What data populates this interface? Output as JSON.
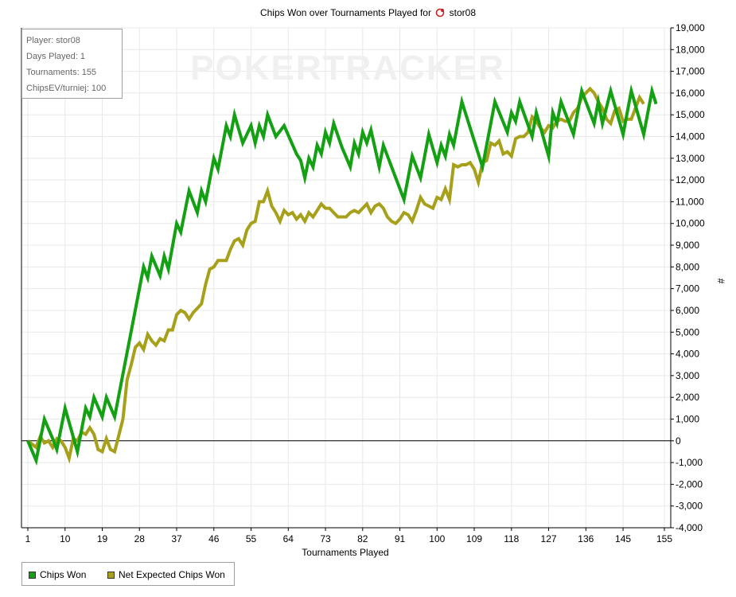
{
  "title": {
    "prefix": "Chips Won over Tournaments Played for",
    "player": "stor08",
    "icon": "player-site-icon"
  },
  "info": {
    "player": "Player: stor08",
    "days": "Days Played: 1",
    "tournaments": "Tournaments: 155",
    "chipsev": "ChipsEV/turniej: 100"
  },
  "watermark": "POKERTRACKER",
  "colors": {
    "chips_won": "#13a013",
    "net_expected": "#a6a01a",
    "grid": "#e8e8e8",
    "zero_line": "#000000"
  },
  "legend": {
    "position": "bottom-left",
    "items": [
      "Chips Won",
      "Net Expected Chips Won"
    ]
  },
  "chart_data": {
    "type": "line",
    "title": "Chips Won over Tournaments Played for stor08",
    "xlabel": "Tournaments Played",
    "ylabel": "#",
    "xlim": [
      1,
      155
    ],
    "ylim": [
      -4000,
      19000
    ],
    "grid": true,
    "x_ticks": [
      1,
      10,
      19,
      28,
      37,
      46,
      55,
      64,
      73,
      82,
      91,
      100,
      109,
      118,
      127,
      136,
      145,
      155
    ],
    "y_ticks": [
      -4000,
      -3000,
      -2000,
      -1000,
      0,
      1000,
      2000,
      3000,
      4000,
      5000,
      6000,
      7000,
      8000,
      9000,
      10000,
      11000,
      12000,
      13000,
      14000,
      15000,
      16000,
      17000,
      18000,
      19000
    ],
    "y_tick_labels": [
      "-4,000",
      "-3,000",
      "-2,000",
      "-1,000",
      "0",
      "1,000",
      "2,000",
      "3,000",
      "4,000",
      "5,000",
      "6,000",
      "7,000",
      "8,000",
      "9,000",
      "10,000",
      "11,000",
      "12,000",
      "13,000",
      "14,000",
      "15,000",
      "16,000",
      "17,000",
      "18,000",
      "19,000"
    ],
    "series": [
      {
        "name": "Chips Won",
        "points": [
          [
            1,
            0
          ],
          [
            3,
            -900
          ],
          [
            5,
            1000
          ],
          [
            7,
            100
          ],
          [
            8,
            -400
          ],
          [
            10,
            1500
          ],
          [
            13,
            -500
          ],
          [
            15,
            1500
          ],
          [
            16,
            1100
          ],
          [
            17,
            2000
          ],
          [
            19,
            1100
          ],
          [
            20,
            2000
          ],
          [
            22,
            1100
          ],
          [
            29,
            8000
          ],
          [
            30,
            7500
          ],
          [
            31,
            8500
          ],
          [
            33,
            7600
          ],
          [
            34,
            8500
          ],
          [
            35,
            7900
          ],
          [
            37,
            10000
          ],
          [
            38,
            9600
          ],
          [
            40,
            11500
          ],
          [
            42,
            10500
          ],
          [
            43,
            11500
          ],
          [
            44,
            11000
          ],
          [
            46,
            13000
          ],
          [
            47,
            12500
          ],
          [
            49,
            14500
          ],
          [
            50,
            14000
          ],
          [
            51,
            15000
          ],
          [
            53,
            13700
          ],
          [
            55,
            14500
          ],
          [
            56,
            13700
          ],
          [
            57,
            14500
          ],
          [
            58,
            14000
          ],
          [
            59,
            15000
          ],
          [
            61,
            14000
          ],
          [
            63,
            14500
          ],
          [
            66,
            13200
          ],
          [
            67,
            12900
          ],
          [
            68,
            12100
          ],
          [
            69,
            13000
          ],
          [
            70,
            12600
          ],
          [
            71,
            13600
          ],
          [
            72,
            13200
          ],
          [
            73,
            14200
          ],
          [
            74,
            13700
          ],
          [
            75,
            14600
          ],
          [
            77,
            13500
          ],
          [
            79,
            12600
          ],
          [
            80,
            13700
          ],
          [
            81,
            13200
          ],
          [
            82,
            14200
          ],
          [
            83,
            13700
          ],
          [
            84,
            14300
          ],
          [
            86,
            12600
          ],
          [
            87,
            13600
          ],
          [
            92,
            11100
          ],
          [
            94,
            13100
          ],
          [
            96,
            12100
          ],
          [
            98,
            14100
          ],
          [
            100,
            12800
          ],
          [
            101,
            13600
          ],
          [
            102,
            13100
          ],
          [
            103,
            14100
          ],
          [
            104,
            13600
          ],
          [
            106,
            15600
          ],
          [
            111,
            12600
          ],
          [
            114,
            15600
          ],
          [
            117,
            14200
          ],
          [
            118,
            15100
          ],
          [
            119,
            14700
          ],
          [
            120,
            15600
          ],
          [
            123,
            14000
          ],
          [
            124,
            15100
          ],
          [
            127,
            13100
          ],
          [
            128,
            15100
          ],
          [
            129,
            14600
          ],
          [
            130,
            15600
          ],
          [
            133,
            14100
          ],
          [
            135,
            16100
          ],
          [
            138,
            14600
          ],
          [
            139,
            15600
          ],
          [
            140,
            14600
          ],
          [
            142,
            16100
          ],
          [
            145,
            14100
          ],
          [
            147,
            16100
          ],
          [
            150,
            14100
          ],
          [
            152,
            16100
          ],
          [
            153,
            15500
          ]
        ]
      },
      {
        "name": "Net Expected Chips Won",
        "points": [
          [
            1,
            0
          ],
          [
            3,
            -300
          ],
          [
            4,
            200
          ],
          [
            5,
            -100
          ],
          [
            6,
            0
          ],
          [
            7,
            -300
          ],
          [
            8,
            100
          ],
          [
            9,
            0
          ],
          [
            10,
            -300
          ],
          [
            11,
            -800
          ],
          [
            12,
            100
          ],
          [
            13,
            0
          ],
          [
            14,
            400
          ],
          [
            15,
            300
          ],
          [
            16,
            600
          ],
          [
            17,
            300
          ],
          [
            18,
            -400
          ],
          [
            19,
            -500
          ],
          [
            20,
            100
          ],
          [
            21,
            -400
          ],
          [
            22,
            -500
          ],
          [
            24,
            1000
          ],
          [
            25,
            2800
          ],
          [
            26,
            3500
          ],
          [
            27,
            4300
          ],
          [
            28,
            4500
          ],
          [
            29,
            4200
          ],
          [
            30,
            4900
          ],
          [
            31,
            4600
          ],
          [
            32,
            4400
          ],
          [
            33,
            4700
          ],
          [
            34,
            4600
          ],
          [
            35,
            5100
          ],
          [
            36,
            5100
          ],
          [
            37,
            5800
          ],
          [
            38,
            6000
          ],
          [
            39,
            5900
          ],
          [
            40,
            5600
          ],
          [
            41,
            5900
          ],
          [
            43,
            6300
          ],
          [
            44,
            7200
          ],
          [
            45,
            7900
          ],
          [
            46,
            8000
          ],
          [
            47,
            8300
          ],
          [
            49,
            8300
          ],
          [
            50,
            8800
          ],
          [
            51,
            9200
          ],
          [
            52,
            9300
          ],
          [
            53,
            9000
          ],
          [
            54,
            9700
          ],
          [
            55,
            10000
          ],
          [
            56,
            10100
          ],
          [
            57,
            11000
          ],
          [
            58,
            11000
          ],
          [
            59,
            11500
          ],
          [
            60,
            10800
          ],
          [
            61,
            10500
          ],
          [
            62,
            10100
          ],
          [
            63,
            10600
          ],
          [
            64,
            10400
          ],
          [
            65,
            10500
          ],
          [
            66,
            10200
          ],
          [
            67,
            10400
          ],
          [
            68,
            10100
          ],
          [
            69,
            10500
          ],
          [
            70,
            10300
          ],
          [
            71,
            10600
          ],
          [
            72,
            10900
          ],
          [
            73,
            10700
          ],
          [
            74,
            10700
          ],
          [
            75,
            10500
          ],
          [
            76,
            10300
          ],
          [
            78,
            10300
          ],
          [
            79,
            10500
          ],
          [
            80,
            10600
          ],
          [
            81,
            10500
          ],
          [
            82,
            10700
          ],
          [
            83,
            10900
          ],
          [
            84,
            10500
          ],
          [
            85,
            10800
          ],
          [
            86,
            10900
          ],
          [
            87,
            10700
          ],
          [
            88,
            10300
          ],
          [
            89,
            10100
          ],
          [
            90,
            10000
          ],
          [
            91,
            10200
          ],
          [
            92,
            10500
          ],
          [
            93,
            10400
          ],
          [
            94,
            10100
          ],
          [
            95,
            10600
          ],
          [
            96,
            11200
          ],
          [
            97,
            10900
          ],
          [
            98,
            10800
          ],
          [
            99,
            10700
          ],
          [
            100,
            11200
          ],
          [
            101,
            11100
          ],
          [
            102,
            11600
          ],
          [
            103,
            11100
          ],
          [
            104,
            12700
          ],
          [
            105,
            12600
          ],
          [
            106,
            12700
          ],
          [
            107,
            12700
          ],
          [
            108,
            12800
          ],
          [
            109,
            12500
          ],
          [
            110,
            11900
          ],
          [
            111,
            12800
          ],
          [
            112,
            12900
          ],
          [
            113,
            13700
          ],
          [
            114,
            13600
          ],
          [
            115,
            13800
          ],
          [
            116,
            13200
          ],
          [
            117,
            13300
          ],
          [
            118,
            13100
          ],
          [
            119,
            13900
          ],
          [
            120,
            14000
          ],
          [
            121,
            14000
          ],
          [
            122,
            14200
          ],
          [
            123,
            14900
          ],
          [
            124,
            14700
          ],
          [
            125,
            14400
          ],
          [
            126,
            14200
          ],
          [
            127,
            14500
          ],
          [
            128,
            14400
          ],
          [
            129,
            14700
          ],
          [
            130,
            14800
          ],
          [
            131,
            14700
          ],
          [
            132,
            14700
          ],
          [
            133,
            15100
          ],
          [
            134,
            15300
          ],
          [
            135,
            15800
          ],
          [
            136,
            16000
          ],
          [
            137,
            16200
          ],
          [
            138,
            16000
          ],
          [
            139,
            15600
          ],
          [
            140,
            15300
          ],
          [
            141,
            14800
          ],
          [
            142,
            14600
          ],
          [
            143,
            15200
          ],
          [
            144,
            15300
          ],
          [
            145,
            14700
          ],
          [
            146,
            14800
          ],
          [
            147,
            14800
          ],
          [
            148,
            15300
          ],
          [
            149,
            15800
          ],
          [
            150,
            15500
          ]
        ]
      }
    ]
  }
}
